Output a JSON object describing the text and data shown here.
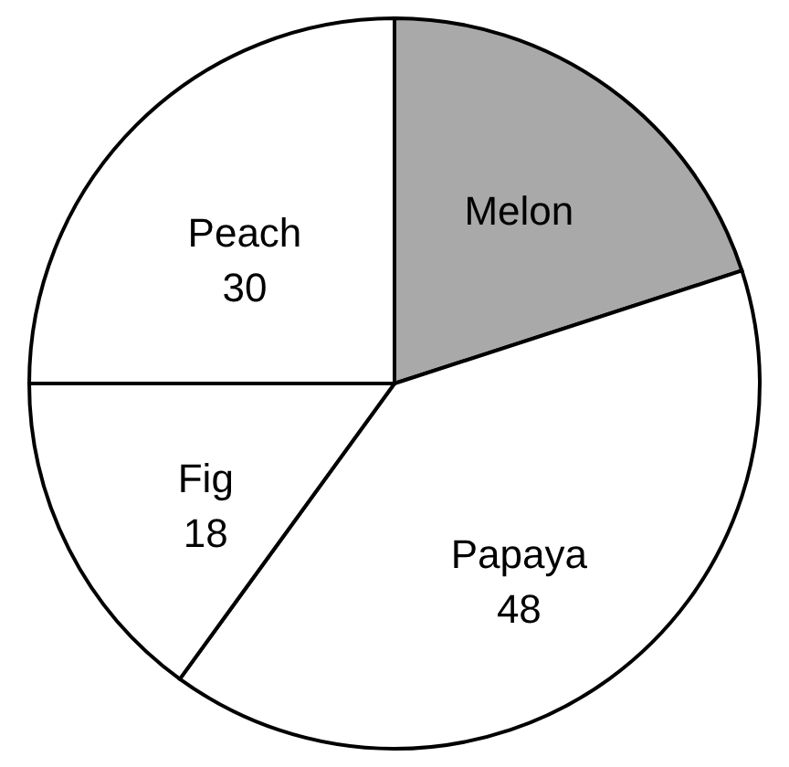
{
  "chart_data": {
    "type": "pie",
    "categories": [
      "Melon",
      "Papaya",
      "Fig",
      "Peach"
    ],
    "values": [
      24,
      48,
      18,
      30
    ],
    "value_labels": [
      null,
      "48",
      "18",
      "30"
    ],
    "colors": [
      "#a9a9a9",
      "#ffffff",
      "#ffffff",
      "#ffffff"
    ]
  }
}
